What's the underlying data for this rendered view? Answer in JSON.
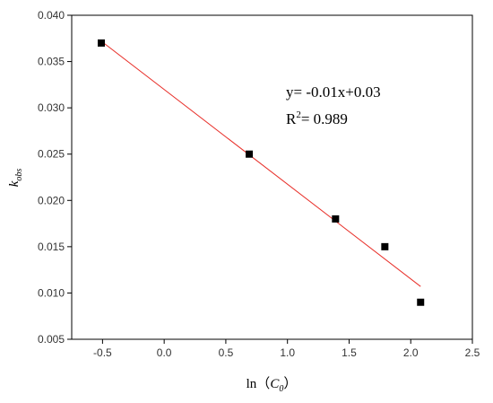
{
  "chart_data": {
    "type": "scatter",
    "x": [
      -0.51,
      0.69,
      1.39,
      1.79,
      2.08
    ],
    "values": [
      0.037,
      0.025,
      0.018,
      0.015,
      0.009
    ],
    "color": "#000000",
    "fit_line": {
      "x": [
        -0.51,
        2.08
      ],
      "values": [
        0.0372,
        0.0107
      ],
      "color": "#e8302a"
    },
    "xlim": [
      -0.75,
      2.5
    ],
    "xticks": [
      -0.5,
      {
        "value": 0,
        "label": "0.0"
      },
      0.5,
      {
        "value": 1,
        "label": "1.0"
      },
      1.5,
      {
        "value": 2,
        "label": "2.0"
      },
      2.5
    ],
    "ylim": [
      0.005,
      0.04
    ],
    "yticks": [
      {
        "value": 0.005,
        "label": "0.005"
      },
      {
        "value": 0.01,
        "label": "0.010"
      },
      {
        "value": 0.015,
        "label": "0.015"
      },
      {
        "value": 0.02,
        "label": "0.020"
      },
      {
        "value": 0.025,
        "label": "0.025"
      },
      {
        "value": 0.03,
        "label": "0.030"
      },
      {
        "value": 0.035,
        "label": "0.035"
      },
      {
        "value": 0.04,
        "label": "0.040"
      }
    ],
    "x_label": {
      "prefix": "ln（",
      "var": "C",
      "sub": "0",
      "suffix": "）"
    },
    "y_label": {
      "var": "k",
      "sub": "obs"
    },
    "equation": "y= -0.01x+0.03",
    "r_squared": {
      "base": "R",
      "sup": "2",
      "rest": "= 0.989"
    }
  }
}
